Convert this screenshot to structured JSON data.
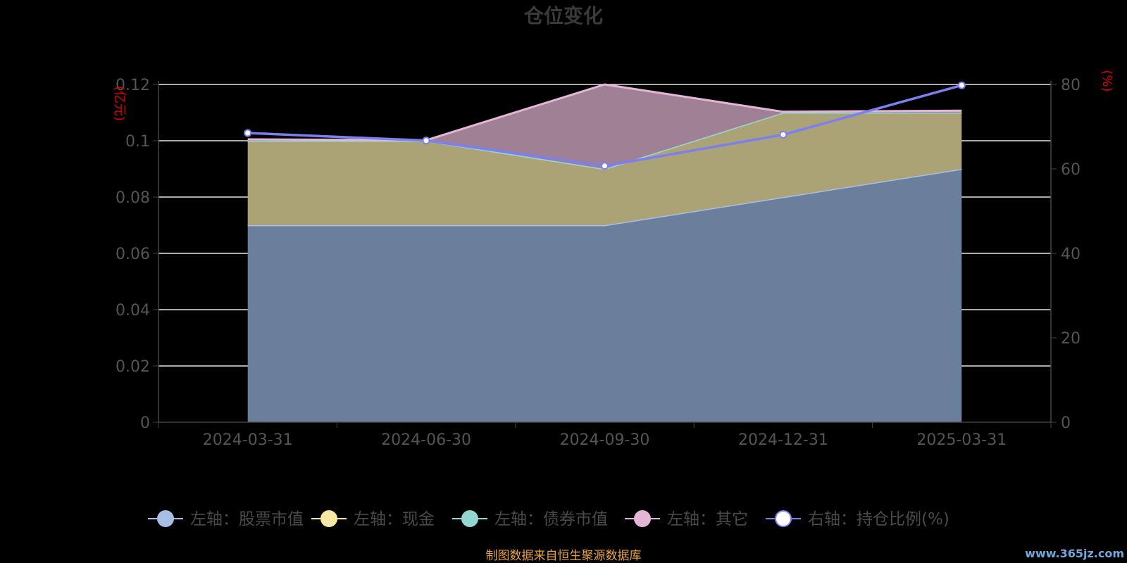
{
  "chart_data": {
    "type": "area",
    "title": "仓位变化",
    "left_axis_unit": "(亿元)",
    "right_axis_unit": "(%)",
    "categories": [
      "2024-03-31",
      "2024-06-30",
      "2024-09-30",
      "2024-12-31",
      "2025-03-31"
    ],
    "left_axis": {
      "ylim": [
        0,
        0.12
      ],
      "ticks": [
        "0",
        "0.02",
        "0.04",
        "0.06",
        "0.08",
        "0.1",
        "0.12"
      ]
    },
    "right_axis": {
      "ylim": [
        0,
        80
      ],
      "ticks": [
        "0",
        "20",
        "40",
        "60",
        "80"
      ]
    },
    "series": [
      {
        "name": "左轴：股票市值",
        "axis": "left",
        "stacked": true,
        "values": [
          0.07,
          0.07,
          0.07,
          0.08,
          0.09
        ],
        "color": "#a7bfe4",
        "fill": "#6b7f9d"
      },
      {
        "name": "左轴：现金",
        "axis": "left",
        "stacked": true,
        "values": [
          0.03,
          0.03,
          0.02,
          0.03,
          0.02
        ],
        "color": "#f9e7a4",
        "fill": "#aba275"
      },
      {
        "name": "左轴：债券市值",
        "axis": "left",
        "stacked": true,
        "values": [
          0,
          0,
          0,
          0,
          0
        ],
        "color": "#93d6d4",
        "fill": "#6aa3a1"
      },
      {
        "name": "左轴：其它",
        "axis": "left",
        "stacked": true,
        "values": [
          0.0005,
          0.0002,
          0.03,
          0.0003,
          0.0007
        ],
        "color": "#e5b5d6",
        "fill": "#9f8095"
      },
      {
        "name": "右轴：持仓比例(%)",
        "axis": "right",
        "stacked": false,
        "type": "line",
        "values": [
          68.5,
          66.7,
          60.7,
          68.1,
          79.8
        ],
        "color": "#7b7ff0"
      }
    ],
    "grid": true,
    "legend_position": "bottom"
  },
  "footer": {
    "source": "制图数据来自恒生聚源数据库",
    "watermark": "www.365jz.com"
  }
}
